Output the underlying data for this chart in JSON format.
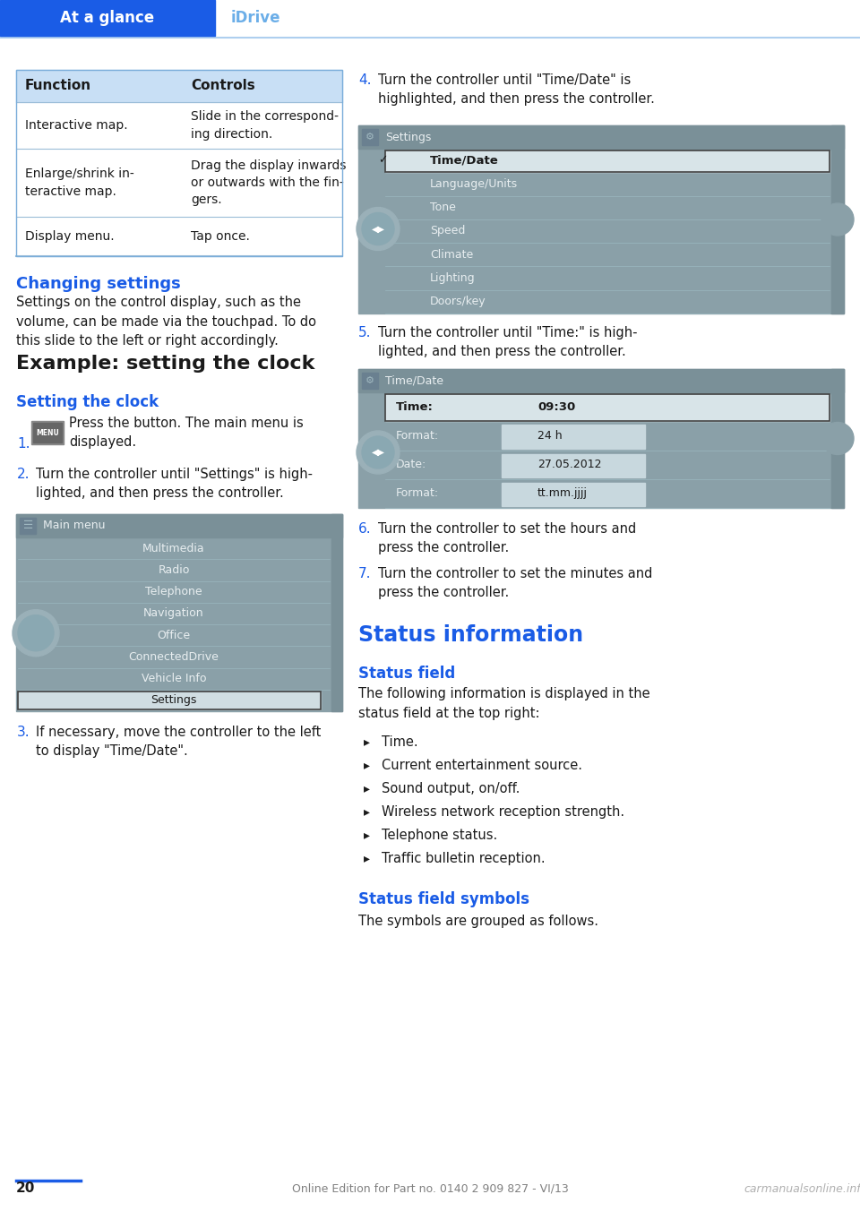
{
  "page_bg": "#ffffff",
  "header_bg": "#1a5ce6",
  "header_text_color": "#ffffff",
  "header_tab1": "At a glance",
  "header_tab2": "iDrive",
  "header_tab2_color": "#6baee8",
  "header_line_color": "#aecfef",
  "table_header_bg": "#c8dff5",
  "table_row_divider": "#9bbdd8",
  "table_outer_border": "#7aadda",
  "table_header_row": [
    "Function",
    "Controls"
  ],
  "table_rows_col1": [
    "Interactive map.",
    "Enlarge/shrink in-\nteractive map.",
    "Display menu."
  ],
  "table_rows_col2": [
    "Slide in the correspond-\ning direction.",
    "Drag the display inwards\nor outwards with the fin-\ngers.",
    "Tap once."
  ],
  "section_changing_title": "Changing settings",
  "section_changing_text": "Settings on the control display, such as the\nvolume, can be made via the touchpad. To do\nthis slide to the left or right accordingly.",
  "section_example_title": "Example: setting the clock",
  "section_setting_title": "Setting the clock",
  "step1_text": "Press the button. The main menu is\ndisplayed.",
  "step2_text": "Turn the controller until \"Settings\" is high-\nlighted, and then press the controller.",
  "step3_text": "If necessary, move the controller to the left\nto display \"Time/Date\".",
  "step4_text": "Turn the controller until \"Time/Date\" is\nhighlighted, and then press the controller.",
  "step5_text": "Turn the controller until \"Time:\" is high-\nlighted, and then press the controller.",
  "step6_text": "Turn the controller to set the hours and\npress the controller.",
  "step7_text": "Turn the controller to set the minutes and\npress the controller.",
  "section_status_title": "Status information",
  "section_status_field_title": "Status field",
  "section_status_field_text": "The following information is displayed in the\nstatus field at the top right:",
  "status_items": [
    "Time.",
    "Current entertainment source.",
    "Sound output, on/off.",
    "Wireless network reception strength.",
    "Telephone status.",
    "Traffic bulletin reception."
  ],
  "section_status_symbols_title": "Status field symbols",
  "section_status_symbols_text": "The symbols are grouped as follows.",
  "footer_page": "20",
  "footer_text": "Online Edition for Part no. 0140 2 909 827 - VI/13",
  "footer_watermark": "carmanualsonline.info",
  "blue_title_color": "#1a5ce6",
  "body_text_color": "#1a1a1a",
  "number_color": "#1a5ce6",
  "footer_text_color": "#808080",
  "footer_line_color": "#1a5ce6",
  "screen_bg": "#8aa0a8",
  "screen_title_bg": "#7a9098",
  "screen_item_bg": "#7a9098",
  "screen_highlight_bg": "#ffffff",
  "screen_highlight_border": "#2a2a2a",
  "screen_text_light": "#e8eef0",
  "screen_text_dark": "#1a1a1a",
  "screen_knob_bg": "#9ab0b8"
}
